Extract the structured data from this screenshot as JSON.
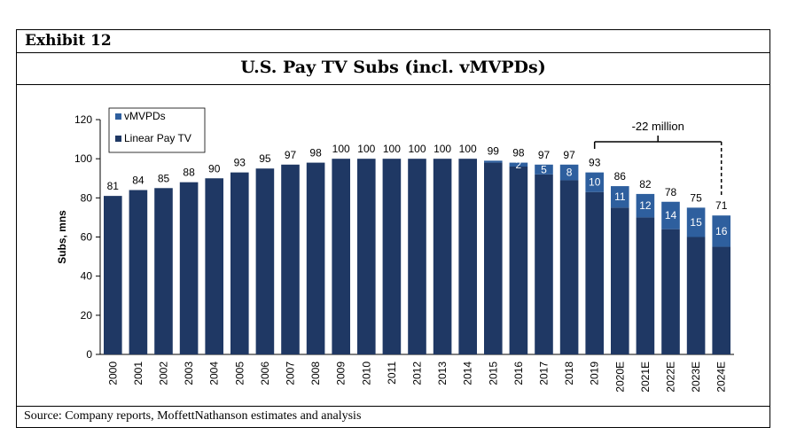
{
  "exhibit": {
    "label": "Exhibit 12"
  },
  "source": {
    "text": "Source: Company reports, MoffettNathanson estimates and analysis"
  },
  "chart_data": {
    "type": "bar",
    "stacked": true,
    "title": "U.S. Pay TV Subs (incl. vMVPDs)",
    "xlabel": "",
    "ylabel": "Subs, mns",
    "ylim": [
      0,
      120
    ],
    "yticks": [
      0,
      20,
      40,
      60,
      80,
      100,
      120
    ],
    "grid": false,
    "legend_position": "top-left",
    "categories": [
      "2000",
      "2001",
      "2002",
      "2003",
      "2004",
      "2005",
      "2006",
      "2007",
      "2008",
      "2009",
      "2010",
      "2011",
      "2012",
      "2013",
      "2014",
      "2015",
      "2016",
      "2017",
      "2018",
      "2019",
      "2020E",
      "2021E",
      "2022E",
      "2023E",
      "2024E"
    ],
    "series": [
      {
        "name": "Linear Pay TV",
        "color": "#1f3864",
        "values": [
          81,
          84,
          85,
          88,
          90,
          93,
          95,
          97,
          98,
          100,
          100,
          100,
          100,
          100,
          100,
          98,
          96,
          92,
          89,
          83,
          75,
          70,
          64,
          60,
          55
        ]
      },
      {
        "name": "vMVPDs",
        "color": "#2e5f9e",
        "values": [
          0,
          0,
          0,
          0,
          0,
          0,
          0,
          0,
          0,
          0,
          0,
          0,
          0,
          0,
          0,
          1,
          2,
          5,
          8,
          10,
          11,
          12,
          14,
          15,
          16
        ]
      }
    ],
    "totals": [
      "81",
      "84",
      "85",
      "88",
      "90",
      "93",
      "95",
      "97",
      "98",
      "100",
      "100",
      "100",
      "100",
      "100",
      "100",
      "99",
      "98",
      "97",
      "97",
      "93",
      "86",
      "82",
      "78",
      "75",
      "71"
    ],
    "vmvpd_labels": [
      "",
      "",
      "",
      "",
      "",
      "",
      "",
      "",
      "",
      "",
      "",
      "",
      "",
      "",
      "",
      "",
      "2",
      "5",
      "8",
      "10",
      "11",
      "12",
      "14",
      "15",
      "16"
    ],
    "annotation": {
      "text": "-22 million",
      "from": "2019",
      "to": "2024E"
    }
  }
}
